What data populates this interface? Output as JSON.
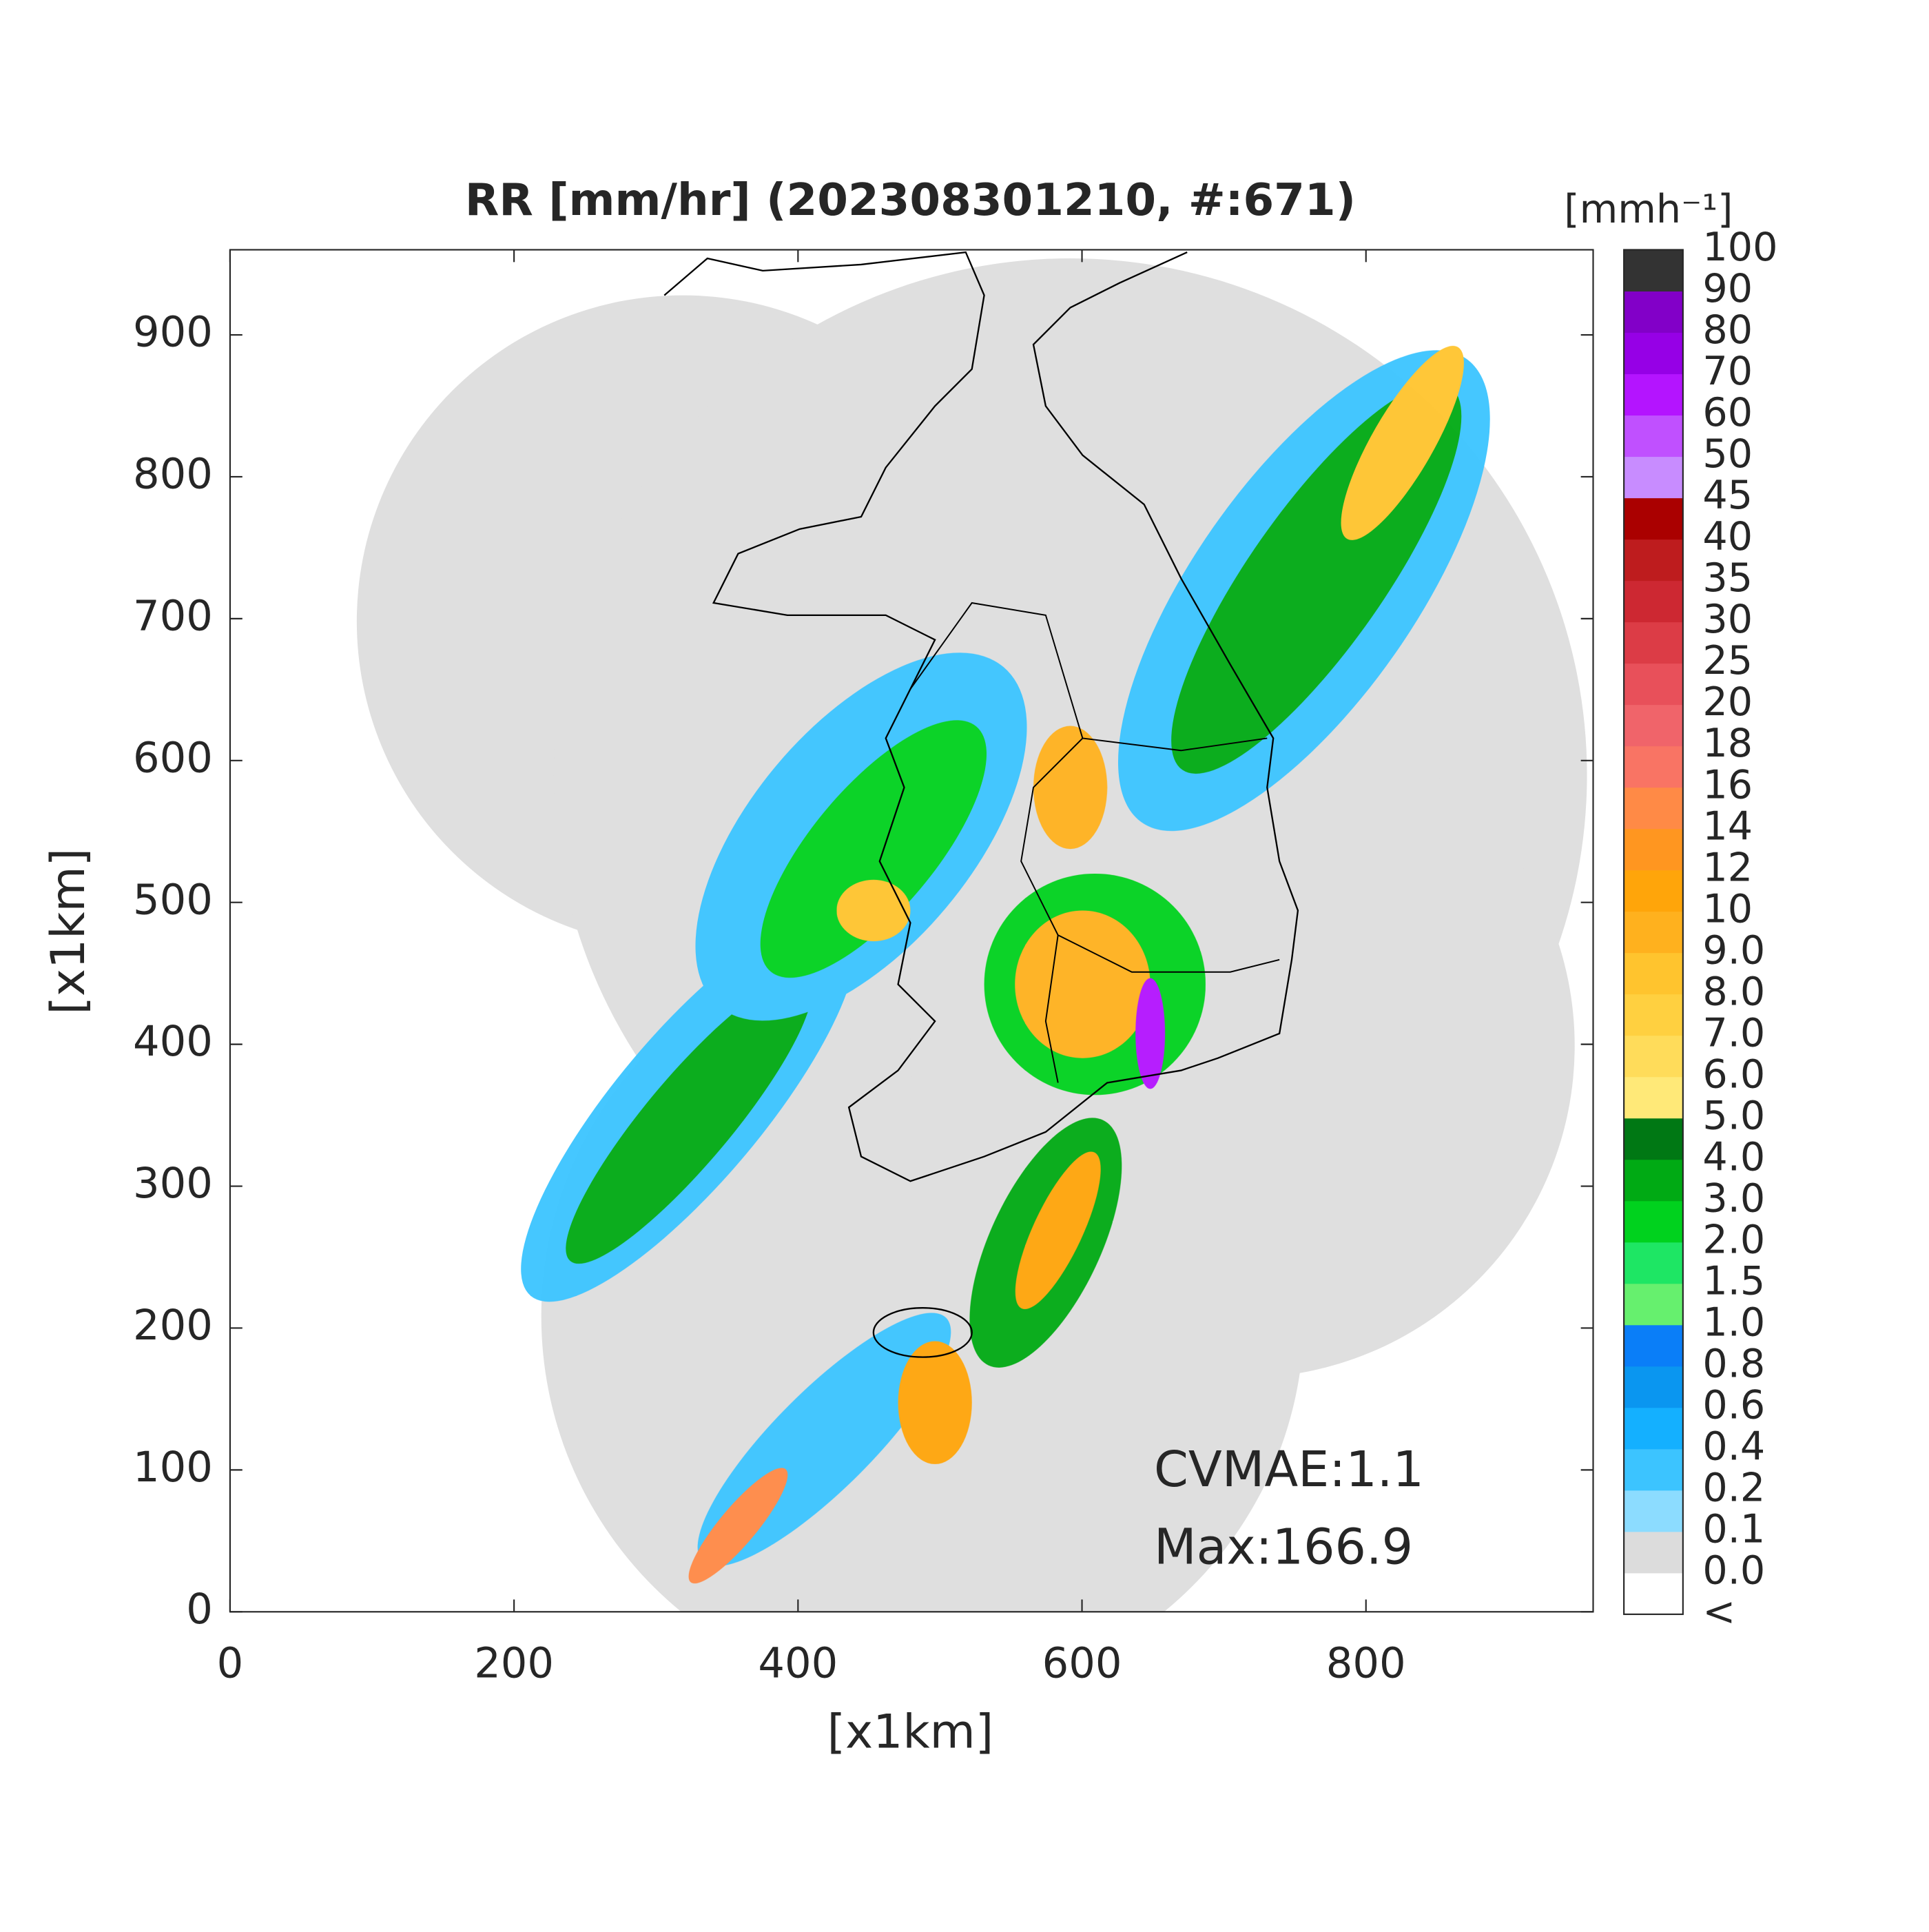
{
  "chart_data": {
    "type": "radar-map",
    "title": "RR [mm/hr] (202308301210, #:671)",
    "xlabel": "[x1km]",
    "ylabel": "[x1km]",
    "xlim": [
      0,
      960
    ],
    "ylim": [
      0,
      960
    ],
    "xticks": [
      0,
      200,
      400,
      600,
      800
    ],
    "yticks": [
      0,
      100,
      200,
      300,
      400,
      500,
      600,
      700,
      800,
      900
    ],
    "annotations": [
      "CVMAE:1.1",
      "Max:166.9"
    ],
    "colorbar": {
      "unit": "[mmh⁻¹]",
      "labels": [
        "<",
        "0.0",
        "0.1",
        "0.2",
        "0.4",
        "0.6",
        "0.8",
        "1.0",
        "1.5",
        "2.0",
        "3.0",
        "4.0",
        "5.0",
        "6.0",
        "7.0",
        "8.0",
        "9.0",
        "10",
        "12",
        "14",
        "16",
        "18",
        "20",
        "25",
        "30",
        "35",
        "40",
        "45",
        "50",
        "60",
        "70",
        "80",
        "90",
        "100"
      ],
      "colors": [
        "#ffffff",
        "#dcdcdc",
        "#8cdcff",
        "#3cc4ff",
        "#14b0ff",
        "#0a96f0",
        "#0a7ef8",
        "#66f06e",
        "#1ee664",
        "#00d21e",
        "#00aa14",
        "#007814",
        "#ffe978",
        "#ffdc5a",
        "#ffd040",
        "#ffc42e",
        "#ffb11e",
        "#ffa50a",
        "#ff9620",
        "#ff8a46",
        "#f97464",
        "#f0646a",
        "#e8505a",
        "#dc3c46",
        "#cd2832",
        "#be1c1e",
        "#aa0000",
        "#c88cff",
        "#c050ff",
        "#b414ff",
        "#9600e6",
        "#8200c8",
        "#333333"
      ]
    }
  }
}
